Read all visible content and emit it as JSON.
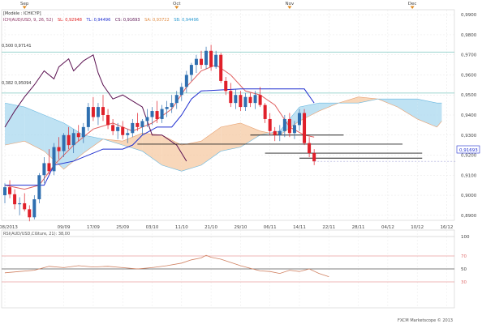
{
  "header": {
    "model_label": "[Modèle : ICHICYP]",
    "indicator_label": "ICH(AUD/USD, 9, 26, 52)",
    "sl": "SL: 0,92948",
    "tl": "TL: 0,94496",
    "cs": "CS: 0,91693",
    "sa": "SA: 0,93722",
    "sb": "SB: 0,94496"
  },
  "months": [
    {
      "label": "Sep",
      "slot": 4
    },
    {
      "label": "Oct",
      "slot": 35
    },
    {
      "label": "Nov",
      "slot": 58
    },
    {
      "label": "Dec",
      "slot": 83
    }
  ],
  "fib_levels": [
    {
      "label": "0,500 0,97141",
      "value": 0.97141
    },
    {
      "label": "0,382 0,95094",
      "value": 0.95094
    }
  ],
  "current_price": {
    "label": "0,91693",
    "value": 0.91693
  },
  "oscillator": {
    "label": "RSI(AUD/USD,Clôture, 21): 38,00",
    "ticks": [
      {
        "label": "100",
        "value": 100
      },
      {
        "label": "70",
        "value": 70
      },
      {
        "label": "50",
        "value": 50
      },
      {
        "label": "30",
        "value": 30
      }
    ]
  },
  "footer": {
    "copyright": "FXCM Marketscope © 2013"
  },
  "colors": {
    "background": "#ffffff",
    "up_candle": "#2f6fb0",
    "down_candle": "#e0202a",
    "tenkan": "#e06060",
    "kijun": "#1f2fd0",
    "chikou": "#5a1050",
    "cloud_bull": "#f5c9a3",
    "cloud_bear": "#a9d8ef",
    "fib_line": "#7cc8c0",
    "axis_text": "#444444",
    "rsi_line": "#d08060",
    "rsi_level": "#e07070"
  },
  "chart_data": [
    {
      "type": "candlestick",
      "title": "",
      "xlabel": "",
      "ylabel": "",
      "ylim": [
        0.8875,
        0.9925
      ],
      "y_ticks": [
        {
          "label": "0,9900",
          "value": 0.99
        },
        {
          "label": "0,9800",
          "value": 0.98
        },
        {
          "label": "0,9700",
          "value": 0.97
        },
        {
          "label": "0,9600",
          "value": 0.96
        },
        {
          "label": "0,9500",
          "value": 0.95
        },
        {
          "label": "0,9400",
          "value": 0.94
        },
        {
          "label": "0,9300",
          "value": 0.93
        },
        {
          "label": "0,9200",
          "value": 0.92
        },
        {
          "label": "0,9100",
          "value": 0.91
        },
        {
          "label": "0,9000",
          "value": 0.9
        },
        {
          "label": "0,8900",
          "value": 0.89
        }
      ],
      "x_ticks": [
        {
          "label": "23/08/2013",
          "slot": 0
        },
        {
          "label": "09/09",
          "slot": 12
        },
        {
          "label": "17/09",
          "slot": 18
        },
        {
          "label": "25/09",
          "slot": 24
        },
        {
          "label": "03/10",
          "slot": 30
        },
        {
          "label": "11/10",
          "slot": 36
        },
        {
          "label": "21/10",
          "slot": 42
        },
        {
          "label": "29/10",
          "slot": 48
        },
        {
          "label": "06/11",
          "slot": 54
        },
        {
          "label": "14/11",
          "slot": 60
        },
        {
          "label": "22/11",
          "slot": 66
        },
        {
          "label": "28/11",
          "slot": 72
        },
        {
          "label": "04/12",
          "slot": 78
        },
        {
          "label": "10/12",
          "slot": 84
        },
        {
          "label": "16/12",
          "slot": 90
        }
      ],
      "candles": [
        [
          0.9,
          0.906,
          0.896,
          0.904
        ],
        [
          0.904,
          0.9075,
          0.8985,
          0.9005
        ],
        [
          0.9005,
          0.903,
          0.893,
          0.8955
        ],
        [
          0.8955,
          0.899,
          0.89,
          0.896
        ],
        [
          0.896,
          0.901,
          0.892,
          0.893
        ],
        [
          0.893,
          0.895,
          0.887,
          0.889
        ],
        [
          0.889,
          0.9,
          0.888,
          0.898
        ],
        [
          0.898,
          0.911,
          0.896,
          0.91
        ],
        [
          0.91,
          0.919,
          0.906,
          0.916
        ],
        [
          0.916,
          0.923,
          0.91,
          0.912
        ],
        [
          0.912,
          0.926,
          0.91,
          0.924
        ],
        [
          0.924,
          0.929,
          0.918,
          0.922
        ],
        [
          0.922,
          0.931,
          0.919,
          0.93
        ],
        [
          0.93,
          0.934,
          0.923,
          0.925
        ],
        [
          0.925,
          0.933,
          0.921,
          0.931
        ],
        [
          0.931,
          0.935,
          0.927,
          0.929
        ],
        [
          0.929,
          0.936,
          0.926,
          0.934
        ],
        [
          0.934,
          0.946,
          0.932,
          0.944
        ],
        [
          0.944,
          0.949,
          0.937,
          0.939
        ],
        [
          0.939,
          0.946,
          0.935,
          0.944
        ],
        [
          0.944,
          0.95,
          0.937,
          0.94
        ],
        [
          0.94,
          0.943,
          0.933,
          0.935
        ],
        [
          0.935,
          0.938,
          0.93,
          0.932
        ],
        [
          0.932,
          0.936,
          0.928,
          0.934
        ],
        [
          0.934,
          0.937,
          0.928,
          0.93
        ],
        [
          0.93,
          0.933,
          0.926,
          0.931
        ],
        [
          0.931,
          0.938,
          0.929,
          0.936
        ],
        [
          0.936,
          0.941,
          0.932,
          0.934
        ],
        [
          0.934,
          0.938,
          0.93,
          0.937
        ],
        [
          0.937,
          0.943,
          0.934,
          0.939
        ],
        [
          0.939,
          0.944,
          0.935,
          0.942
        ],
        [
          0.942,
          0.947,
          0.936,
          0.938
        ],
        [
          0.938,
          0.945,
          0.936,
          0.943
        ],
        [
          0.943,
          0.947,
          0.939,
          0.944
        ],
        [
          0.944,
          0.95,
          0.941,
          0.946
        ],
        [
          0.946,
          0.952,
          0.943,
          0.95
        ],
        [
          0.95,
          0.956,
          0.947,
          0.954
        ],
        [
          0.954,
          0.962,
          0.951,
          0.96
        ],
        [
          0.96,
          0.966,
          0.957,
          0.965
        ],
        [
          0.965,
          0.97,
          0.961,
          0.968
        ],
        [
          0.968,
          0.972,
          0.963,
          0.965
        ],
        [
          0.965,
          0.974,
          0.963,
          0.972
        ],
        [
          0.972,
          0.975,
          0.962,
          0.964
        ],
        [
          0.964,
          0.972,
          0.963,
          0.97
        ],
        [
          0.97,
          0.971,
          0.956,
          0.957
        ],
        [
          0.957,
          0.959,
          0.95,
          0.952
        ],
        [
          0.952,
          0.956,
          0.944,
          0.946
        ],
        [
          0.946,
          0.953,
          0.943,
          0.95
        ],
        [
          0.95,
          0.952,
          0.942,
          0.944
        ],
        [
          0.944,
          0.951,
          0.942,
          0.949
        ],
        [
          0.949,
          0.951,
          0.944,
          0.946
        ],
        [
          0.946,
          0.952,
          0.943,
          0.95
        ],
        [
          0.95,
          0.954,
          0.944,
          0.945
        ],
        [
          0.945,
          0.946,
          0.936,
          0.938
        ],
        [
          0.938,
          0.941,
          0.93,
          0.932
        ],
        [
          0.932,
          0.934,
          0.927,
          0.93
        ],
        [
          0.93,
          0.935,
          0.927,
          0.932
        ],
        [
          0.932,
          0.94,
          0.929,
          0.938
        ],
        [
          0.938,
          0.941,
          0.929,
          0.931
        ],
        [
          0.931,
          0.937,
          0.928,
          0.935
        ],
        [
          0.935,
          0.943,
          0.932,
          0.941
        ],
        [
          0.941,
          0.943,
          0.925,
          0.926
        ],
        [
          0.926,
          0.929,
          0.919,
          0.921
        ],
        [
          0.921,
          0.923,
          0.915,
          0.9169
        ]
      ],
      "series": [
        {
          "name": "SL: 0,92948",
          "values": [
            [
              0,
              0.905
            ],
            [
              4,
              0.903
            ],
            [
              7,
              0.905
            ],
            [
              10,
              0.915
            ],
            [
              14,
              0.925
            ],
            [
              18,
              0.933
            ],
            [
              22,
              0.936
            ],
            [
              26,
              0.932
            ],
            [
              30,
              0.936
            ],
            [
              34,
              0.943
            ],
            [
              37,
              0.954
            ],
            [
              40,
              0.962
            ],
            [
              43,
              0.965
            ],
            [
              46,
              0.96
            ],
            [
              49,
              0.952
            ],
            [
              52,
              0.95
            ],
            [
              55,
              0.945
            ],
            [
              58,
              0.934
            ],
            [
              61,
              0.93
            ],
            [
              63,
              0.929
            ]
          ]
        },
        {
          "name": "TL: 0,94496",
          "values": [
            [
              0,
              0.905
            ],
            [
              5,
              0.905
            ],
            [
              8,
              0.905
            ],
            [
              10,
              0.915
            ],
            [
              14,
              0.917
            ],
            [
              20,
              0.923
            ],
            [
              24,
              0.923
            ],
            [
              26,
              0.925
            ],
            [
              28,
              0.93
            ],
            [
              31,
              0.934
            ],
            [
              34,
              0.934
            ],
            [
              36,
              0.94
            ],
            [
              38,
              0.948
            ],
            [
              40,
              0.952
            ],
            [
              48,
              0.953
            ],
            [
              54,
              0.953
            ],
            [
              58,
              0.953
            ],
            [
              61,
              0.953
            ],
            [
              63,
              0.946
            ]
          ]
        },
        {
          "name": "CS: 0,91693",
          "values": [
            [
              0,
              0.934
            ],
            [
              2,
              0.942
            ],
            [
              4,
              0.949
            ],
            [
              6,
              0.955
            ],
            [
              8,
              0.962
            ],
            [
              10,
              0.958
            ],
            [
              11,
              0.964
            ],
            [
              13,
              0.968
            ],
            [
              14,
              0.962
            ],
            [
              16,
              0.967
            ],
            [
              18,
              0.97
            ],
            [
              19,
              0.961
            ],
            [
              20,
              0.955
            ],
            [
              22,
              0.948
            ],
            [
              24,
              0.95
            ],
            [
              26,
              0.947
            ],
            [
              28,
              0.944
            ],
            [
              30,
              0.93
            ],
            [
              32,
              0.93
            ],
            [
              35,
              0.925
            ],
            [
              37,
              0.917
            ]
          ]
        }
      ],
      "cloud": {
        "x": [
          0,
          4,
          8,
          12,
          16,
          20,
          24,
          28,
          32,
          36,
          40,
          44,
          48,
          52,
          56,
          60,
          64,
          68,
          72,
          76,
          80,
          84,
          88,
          89
        ],
        "span_a": [
          0.925,
          0.927,
          0.922,
          0.913,
          0.921,
          0.928,
          0.927,
          0.931,
          0.93,
          0.925,
          0.927,
          0.934,
          0.936,
          0.932,
          0.93,
          0.937,
          0.942,
          0.946,
          0.949,
          0.948,
          0.944,
          0.938,
          0.934,
          0.937
        ],
        "span_b": [
          0.946,
          0.944,
          0.94,
          0.936,
          0.93,
          0.928,
          0.925,
          0.922,
          0.915,
          0.912,
          0.915,
          0.922,
          0.924,
          0.93,
          0.932,
          0.944,
          0.946,
          0.946,
          0.946,
          0.948,
          0.948,
          0.948,
          0.946,
          0.946
        ]
      },
      "hlines": [
        {
          "value": 0.93,
          "from": 50,
          "to": 69
        },
        {
          "value": 0.9255,
          "from": 27,
          "to": 81
        },
        {
          "value": 0.921,
          "from": 53,
          "to": 85
        },
        {
          "value": 0.9185,
          "from": 60,
          "to": 85
        }
      ]
    },
    {
      "type": "line",
      "title": "RSI(AUD/USD,Clôture, 21): 38,00",
      "ylim": [
        0,
        100
      ],
      "series": [
        {
          "name": "RSI(AUD/USD,Clôture, 21): 38,00",
          "values": [
            [
              0,
              44
            ],
            [
              3,
              46
            ],
            [
              6,
              48
            ],
            [
              9,
              54
            ],
            [
              12,
              52
            ],
            [
              15,
              55
            ],
            [
              18,
              53
            ],
            [
              21,
              54
            ],
            [
              24,
              52
            ],
            [
              27,
              50
            ],
            [
              30,
              52
            ],
            [
              33,
              55
            ],
            [
              36,
              59
            ],
            [
              38,
              64
            ],
            [
              40,
              67
            ],
            [
              41,
              71
            ],
            [
              42,
              68
            ],
            [
              44,
              65
            ],
            [
              46,
              60
            ],
            [
              48,
              55
            ],
            [
              50,
              51
            ],
            [
              52,
              47
            ],
            [
              54,
              46
            ],
            [
              56,
              43
            ],
            [
              58,
              48
            ],
            [
              60,
              46
            ],
            [
              62,
              50
            ],
            [
              64,
              43
            ],
            [
              66,
              38
            ]
          ]
        }
      ]
    }
  ]
}
